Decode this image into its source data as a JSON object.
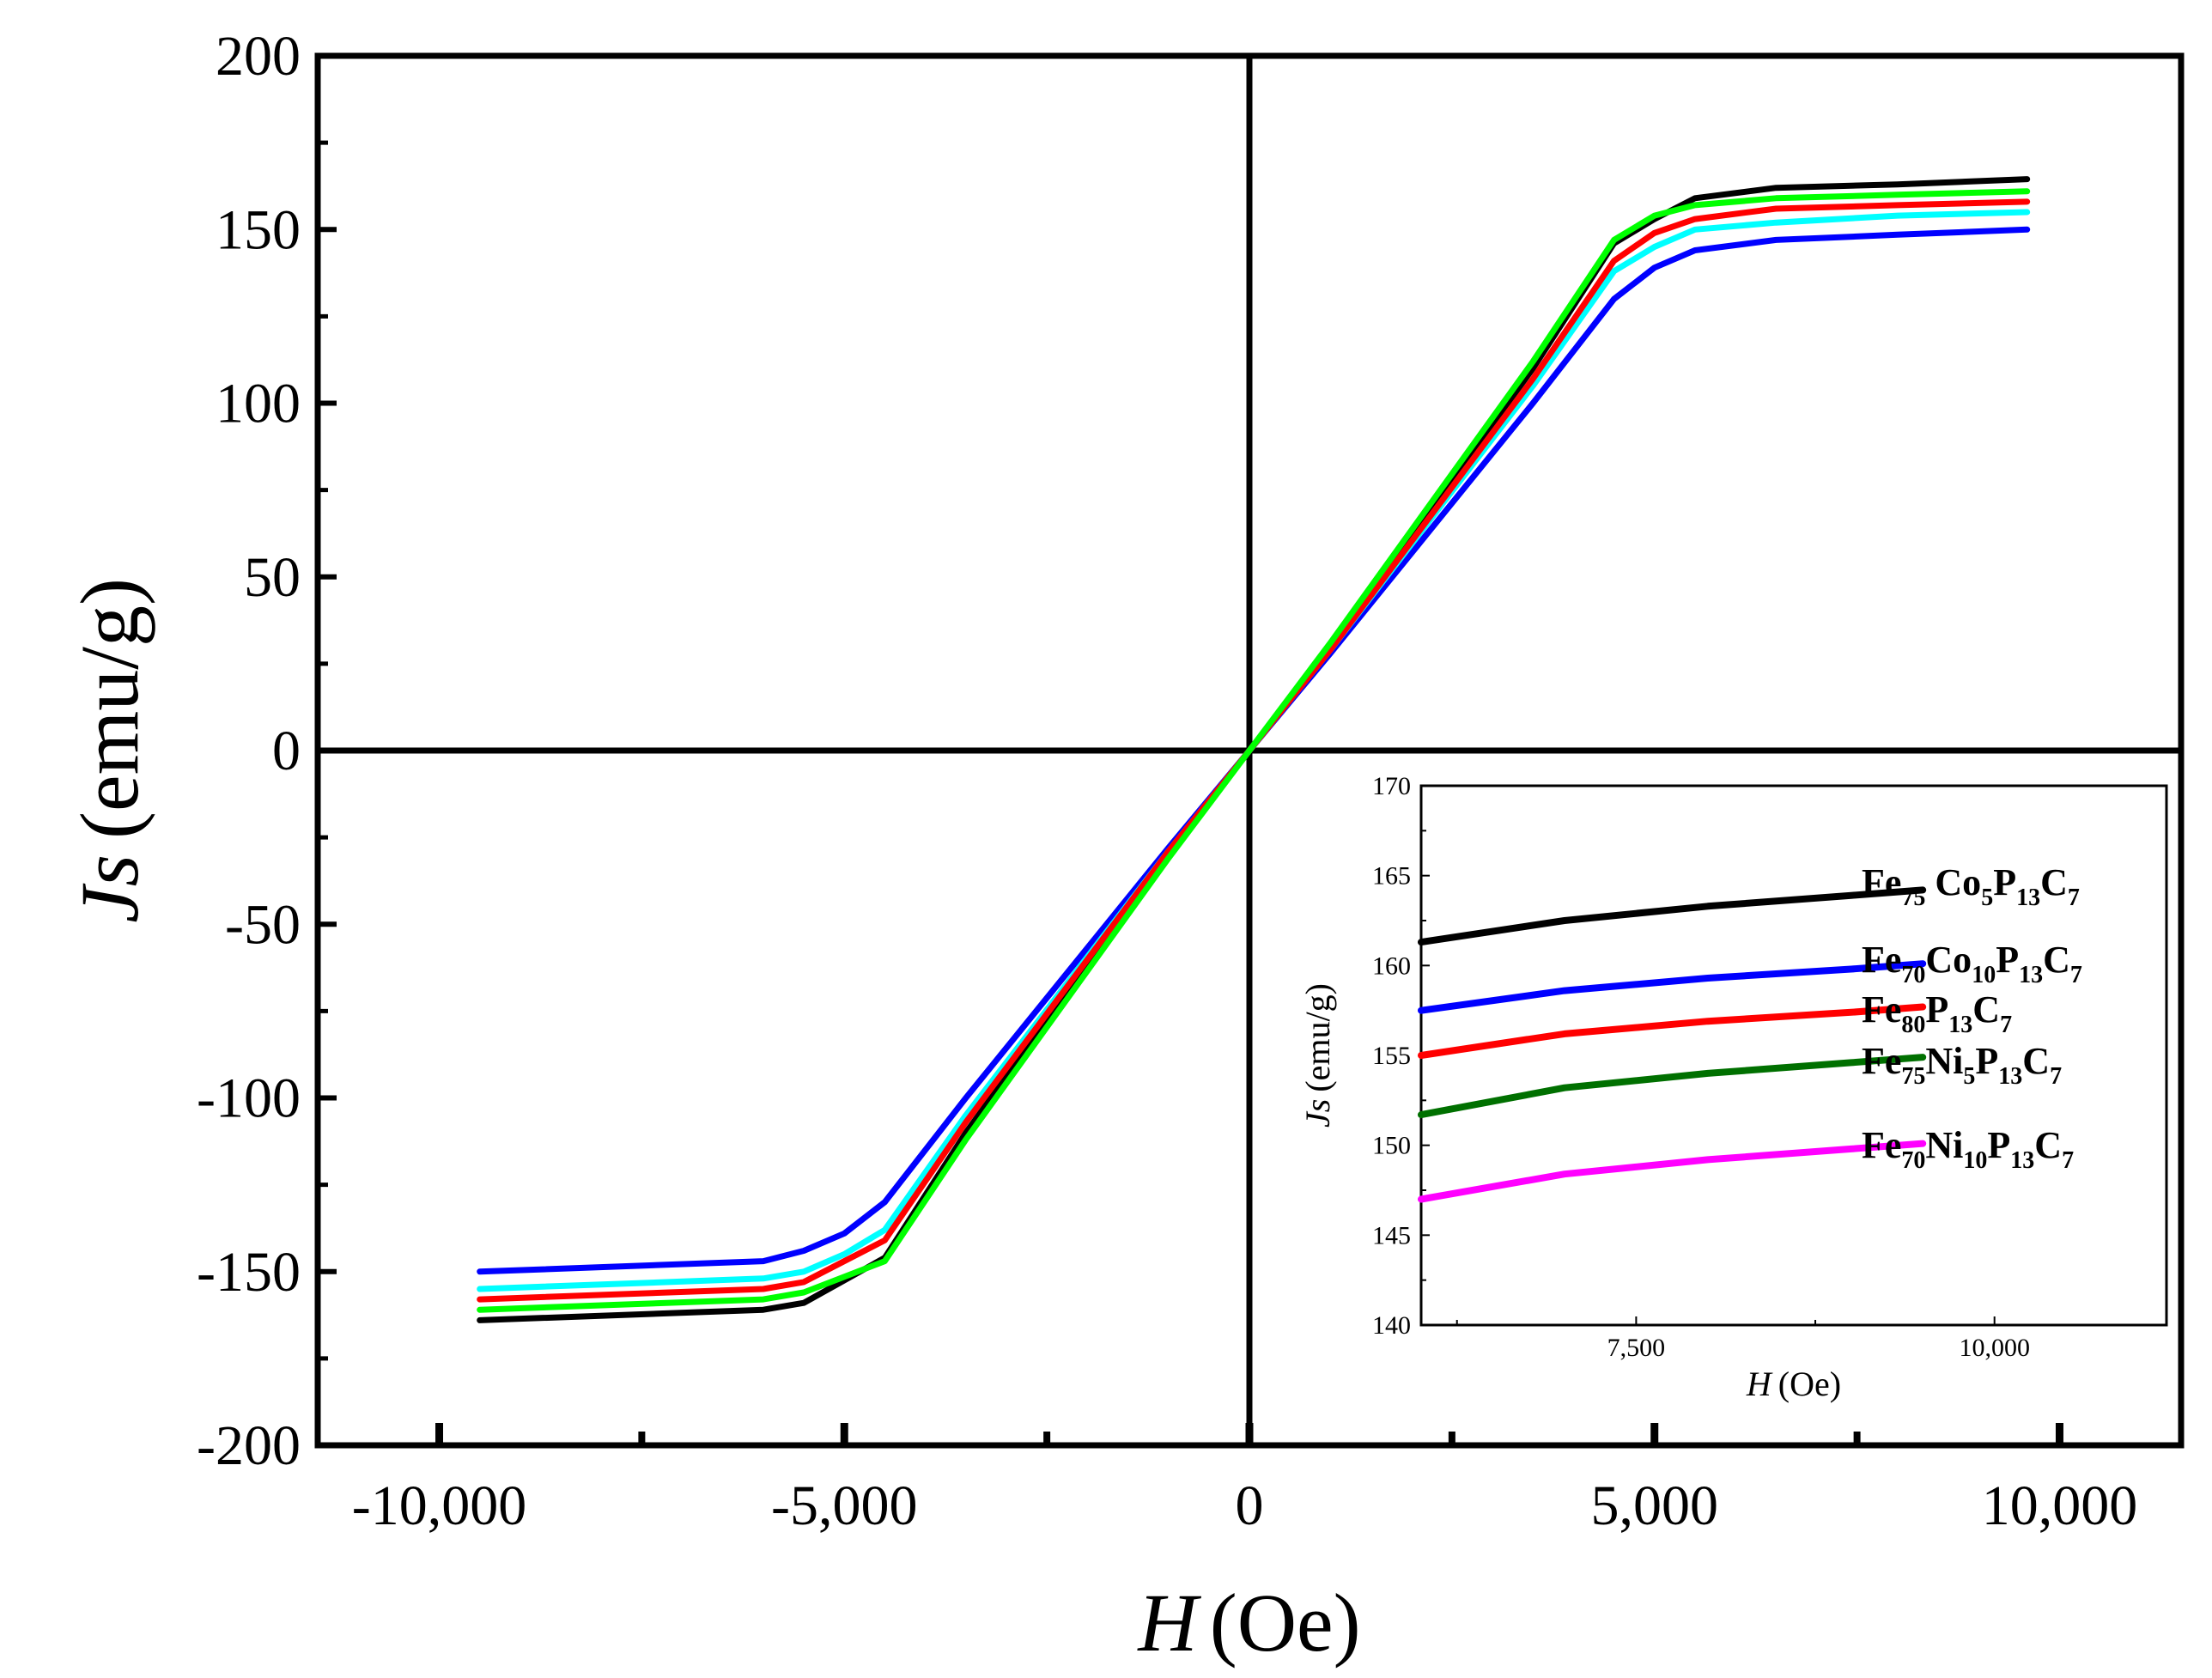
{
  "chart_data": [
    {
      "type": "line",
      "role": "main",
      "title": "",
      "xlabel": {
        "symbol": "H",
        "unit": "(Oe)"
      },
      "ylabel": {
        "symbol": "Js",
        "unit": "(emu/g)"
      },
      "xlim": [
        -11500,
        11500
      ],
      "ylim": [
        -200,
        200
      ],
      "xticks": [
        -10000,
        -5000,
        0,
        5000,
        10000
      ],
      "xtick_labels": [
        "-10,000",
        "-5,000",
        "0",
        "5,000",
        "10,000"
      ],
      "yticks": [
        -200,
        -150,
        -100,
        -50,
        0,
        50,
        100,
        150,
        200
      ],
      "ytick_labels": [
        "-200",
        "-150",
        "-100",
        "-50",
        "0",
        "50",
        "100",
        "150",
        "200"
      ],
      "zero_lines": true,
      "series": [
        {
          "name": "black",
          "color": "#000000",
          "x": [
            -9500,
            -6000,
            -5500,
            -4500,
            -3500,
            -1000,
            0,
            1000,
            3500,
            4500,
            5000,
            5500,
            6500,
            8000,
            9600
          ],
          "y": [
            -164,
            -161,
            -159,
            -146,
            -110,
            -30,
            0,
            30,
            110,
            146,
            153,
            159,
            162,
            163,
            164.5
          ]
        },
        {
          "name": "blue",
          "color": "#0000ff",
          "x": [
            -9500,
            -6000,
            -5500,
            -5000,
            -4500,
            -3500,
            -1000,
            0,
            1000,
            3500,
            4500,
            5000,
            5500,
            6500,
            8000,
            9600
          ],
          "y": [
            -150,
            -147,
            -144,
            -139,
            -130,
            -100,
            -28,
            0,
            28,
            100,
            130,
            139,
            144,
            147,
            148.5,
            150
          ]
        },
        {
          "name": "cyan",
          "color": "#00ffff",
          "x": [
            -9500,
            -6000,
            -5500,
            -5000,
            -4500,
            -3500,
            -1000,
            0,
            1000,
            3500,
            4500,
            5000,
            5500,
            6500,
            8000,
            9600
          ],
          "y": [
            -155,
            -152,
            -150,
            -145,
            -138,
            -105,
            -29,
            0,
            29,
            105,
            138,
            145,
            150,
            152,
            154,
            155
          ]
        },
        {
          "name": "red",
          "color": "#ff0000",
          "x": [
            -9500,
            -6000,
            -5500,
            -4500,
            -3500,
            -1000,
            0,
            1000,
            3500,
            4500,
            5000,
            5500,
            6500,
            8000,
            9600
          ],
          "y": [
            -158,
            -155,
            -153,
            -141,
            -107,
            -29,
            0,
            29,
            107,
            141,
            149,
            153,
            156,
            157,
            158
          ]
        },
        {
          "name": "green",
          "color": "#00ff00",
          "x": [
            -9500,
            -6000,
            -5500,
            -4500,
            -3500,
            -1000,
            0,
            1000,
            3500,
            4500,
            5000,
            5500,
            6500,
            8000,
            9600
          ],
          "y": [
            -161,
            -158,
            -156,
            -147,
            -112,
            -31,
            0,
            31,
            112,
            147,
            154,
            157,
            159,
            160,
            161
          ]
        }
      ]
    },
    {
      "type": "line",
      "role": "inset",
      "title": "",
      "xlabel": {
        "symbol": "H",
        "unit": "(Oe)"
      },
      "ylabel": {
        "symbol": "Js",
        "unit": "(emu/g)"
      },
      "xlim": [
        6000,
        11200
      ],
      "ylim": [
        140,
        170
      ],
      "xticks": [
        7500,
        10000
      ],
      "xtick_labels": [
        "7,500",
        "10,000"
      ],
      "yticks": [
        140,
        145,
        150,
        155,
        160,
        165,
        170
      ],
      "ytick_labels": [
        "140",
        "145",
        "150",
        "155",
        "160",
        "165",
        "170"
      ],
      "series": [
        {
          "name": "Fe75Co5P13C7",
          "color": "#000000",
          "x": [
            6000,
            7000,
            8000,
            9000,
            9500
          ],
          "y": [
            161.3,
            162.5,
            163.3,
            163.9,
            164.2
          ]
        },
        {
          "name": "Fe70Co10P13C7",
          "color": "#0000ff",
          "x": [
            6000,
            7000,
            8000,
            9000,
            9500
          ],
          "y": [
            157.5,
            158.6,
            159.3,
            159.8,
            160.1
          ]
        },
        {
          "name": "Fe80P13C7",
          "color": "#ff0000",
          "x": [
            6000,
            7000,
            8000,
            9000,
            9500
          ],
          "y": [
            155.0,
            156.2,
            156.9,
            157.4,
            157.7
          ]
        },
        {
          "name": "Fe75Ni5P13C7",
          "color": "#007000",
          "x": [
            6000,
            7000,
            8000,
            9000,
            9500
          ],
          "y": [
            151.7,
            153.2,
            154.0,
            154.6,
            154.9
          ]
        },
        {
          "name": "Fe70Ni10P13C7",
          "color": "#ff00ff",
          "x": [
            6000,
            7000,
            8000,
            9000,
            9500
          ],
          "y": [
            147.0,
            148.4,
            149.2,
            149.8,
            150.1
          ]
        }
      ],
      "legend": [
        {
          "color": "#000000",
          "parts": [
            [
              "Fe",
              ""
            ],
            [
              "75",
              "sub"
            ],
            [
              " Co",
              ""
            ],
            [
              "5",
              "sub"
            ],
            [
              "P",
              ""
            ],
            [
              "13",
              "sub"
            ],
            [
              "C",
              ""
            ],
            [
              "7",
              "sub"
            ]
          ]
        },
        {
          "color": "#0000ff",
          "parts": [
            [
              "Fe",
              ""
            ],
            [
              "70",
              "sub"
            ],
            [
              "Co",
              ""
            ],
            [
              "10",
              "sub"
            ],
            [
              "P",
              ""
            ],
            [
              "13",
              "sub"
            ],
            [
              "C",
              ""
            ],
            [
              "7",
              "sub"
            ]
          ]
        },
        {
          "color": "#ff0000",
          "parts": [
            [
              "Fe",
              ""
            ],
            [
              "80",
              "sub"
            ],
            [
              "P",
              ""
            ],
            [
              "13",
              "sub"
            ],
            [
              "C",
              ""
            ],
            [
              "7",
              "sub"
            ]
          ]
        },
        {
          "color": "#007000",
          "parts": [
            [
              "Fe",
              ""
            ],
            [
              "75",
              "sub"
            ],
            [
              "Ni",
              ""
            ],
            [
              "5",
              "sub"
            ],
            [
              "P",
              ""
            ],
            [
              "13",
              "sub"
            ],
            [
              "C",
              ""
            ],
            [
              "7",
              "sub"
            ]
          ]
        },
        {
          "color": "#ff00ff",
          "parts": [
            [
              "Fe",
              ""
            ],
            [
              "70",
              "sub"
            ],
            [
              "Ni",
              ""
            ],
            [
              "10",
              "sub"
            ],
            [
              "P",
              ""
            ],
            [
              "13",
              "sub"
            ],
            [
              "C",
              ""
            ],
            [
              "7",
              "sub"
            ]
          ]
        }
      ]
    }
  ]
}
